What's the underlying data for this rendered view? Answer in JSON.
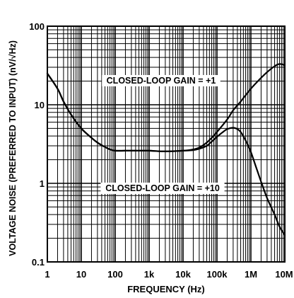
{
  "chart_data": {
    "type": "line",
    "xlabel": "FREQUENCY (Hz)",
    "ylabel": "VOLTAGE NOISE (PREFERRED TO INPUT) (nV/√Hz)",
    "x_scale": "log",
    "y_scale": "log",
    "xlim": [
      1,
      10000000
    ],
    "ylim": [
      0.1,
      100
    ],
    "grid": true,
    "x_ticks": [
      {
        "value": 1,
        "label": "1"
      },
      {
        "value": 10,
        "label": "10"
      },
      {
        "value": 100,
        "label": "100"
      },
      {
        "value": 1000,
        "label": "1k"
      },
      {
        "value": 10000,
        "label": "10k"
      },
      {
        "value": 100000,
        "label": "100k"
      },
      {
        "value": 1000000,
        "label": "1M"
      },
      {
        "value": 10000000,
        "label": "10M"
      }
    ],
    "y_ticks": [
      {
        "value": 0.1,
        "label": "0.1"
      },
      {
        "value": 1,
        "label": "1"
      },
      {
        "value": 10,
        "label": "10"
      },
      {
        "value": 100,
        "label": "100"
      }
    ],
    "series": [
      {
        "name": "CLOSED-LOOP GAIN = +1",
        "color": "#000000",
        "x": [
          1,
          2,
          3,
          5,
          10,
          20,
          30,
          50,
          70,
          100,
          200,
          500,
          1000,
          3000,
          10000,
          20000,
          30000,
          50000,
          70000,
          100000,
          200000,
          300000,
          500000,
          1000000,
          2000000,
          3000000,
          5000000,
          7000000,
          10000000
        ],
        "y": [
          25,
          16,
          11,
          7.5,
          5,
          3.8,
          3.3,
          2.9,
          2.7,
          2.6,
          2.6,
          2.6,
          2.6,
          2.55,
          2.6,
          2.7,
          2.85,
          3.3,
          3.8,
          4.5,
          6.5,
          8.5,
          11,
          16,
          22,
          26,
          31,
          33,
          32
        ]
      },
      {
        "name": "CLOSED-LOOP GAIN = +10",
        "color": "#000000",
        "x": [
          1,
          2,
          3,
          5,
          10,
          20,
          30,
          50,
          70,
          100,
          200,
          500,
          1000,
          3000,
          10000,
          20000,
          30000,
          50000,
          70000,
          100000,
          150000,
          200000,
          300000,
          400000,
          500000,
          700000,
          1000000,
          1500000,
          2000000,
          3000000,
          5000000,
          7000000,
          10000000
        ],
        "y": [
          25,
          16,
          11,
          7.5,
          5,
          3.8,
          3.3,
          2.9,
          2.7,
          2.6,
          2.6,
          2.6,
          2.6,
          2.55,
          2.6,
          2.65,
          2.75,
          3.0,
          3.4,
          3.9,
          4.5,
          4.9,
          5.1,
          4.9,
          4.5,
          3.5,
          2.5,
          1.5,
          1.05,
          0.65,
          0.4,
          0.28,
          0.22
        ]
      }
    ],
    "annotations": [
      {
        "text": "CLOSED-LOOP GAIN = +1",
        "series": 0
      },
      {
        "text": "CLOSED-LOOP GAIN = +10",
        "series": 1
      }
    ]
  }
}
